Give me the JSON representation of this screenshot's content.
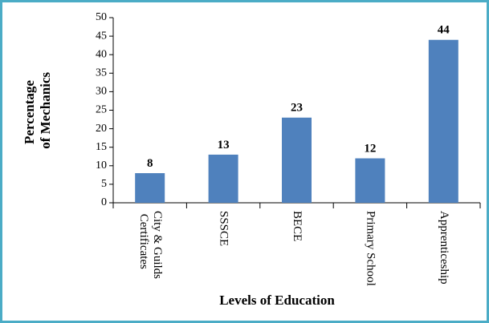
{
  "chart_data": {
    "type": "bar",
    "y_label": "Percentage of Mechanics",
    "x_label": "Levels of Education",
    "categories": [
      "City & Guilds Certificates",
      "SSSCE",
      "BECE",
      "Primary School",
      "Apprenticeship"
    ],
    "values": [
      8,
      13,
      23,
      12,
      44
    ],
    "color": "#4f81bd",
    "ylim": [
      0,
      50
    ],
    "yticks": [
      0,
      5,
      10,
      15,
      20,
      25,
      30,
      35,
      40,
      45,
      50
    ]
  }
}
